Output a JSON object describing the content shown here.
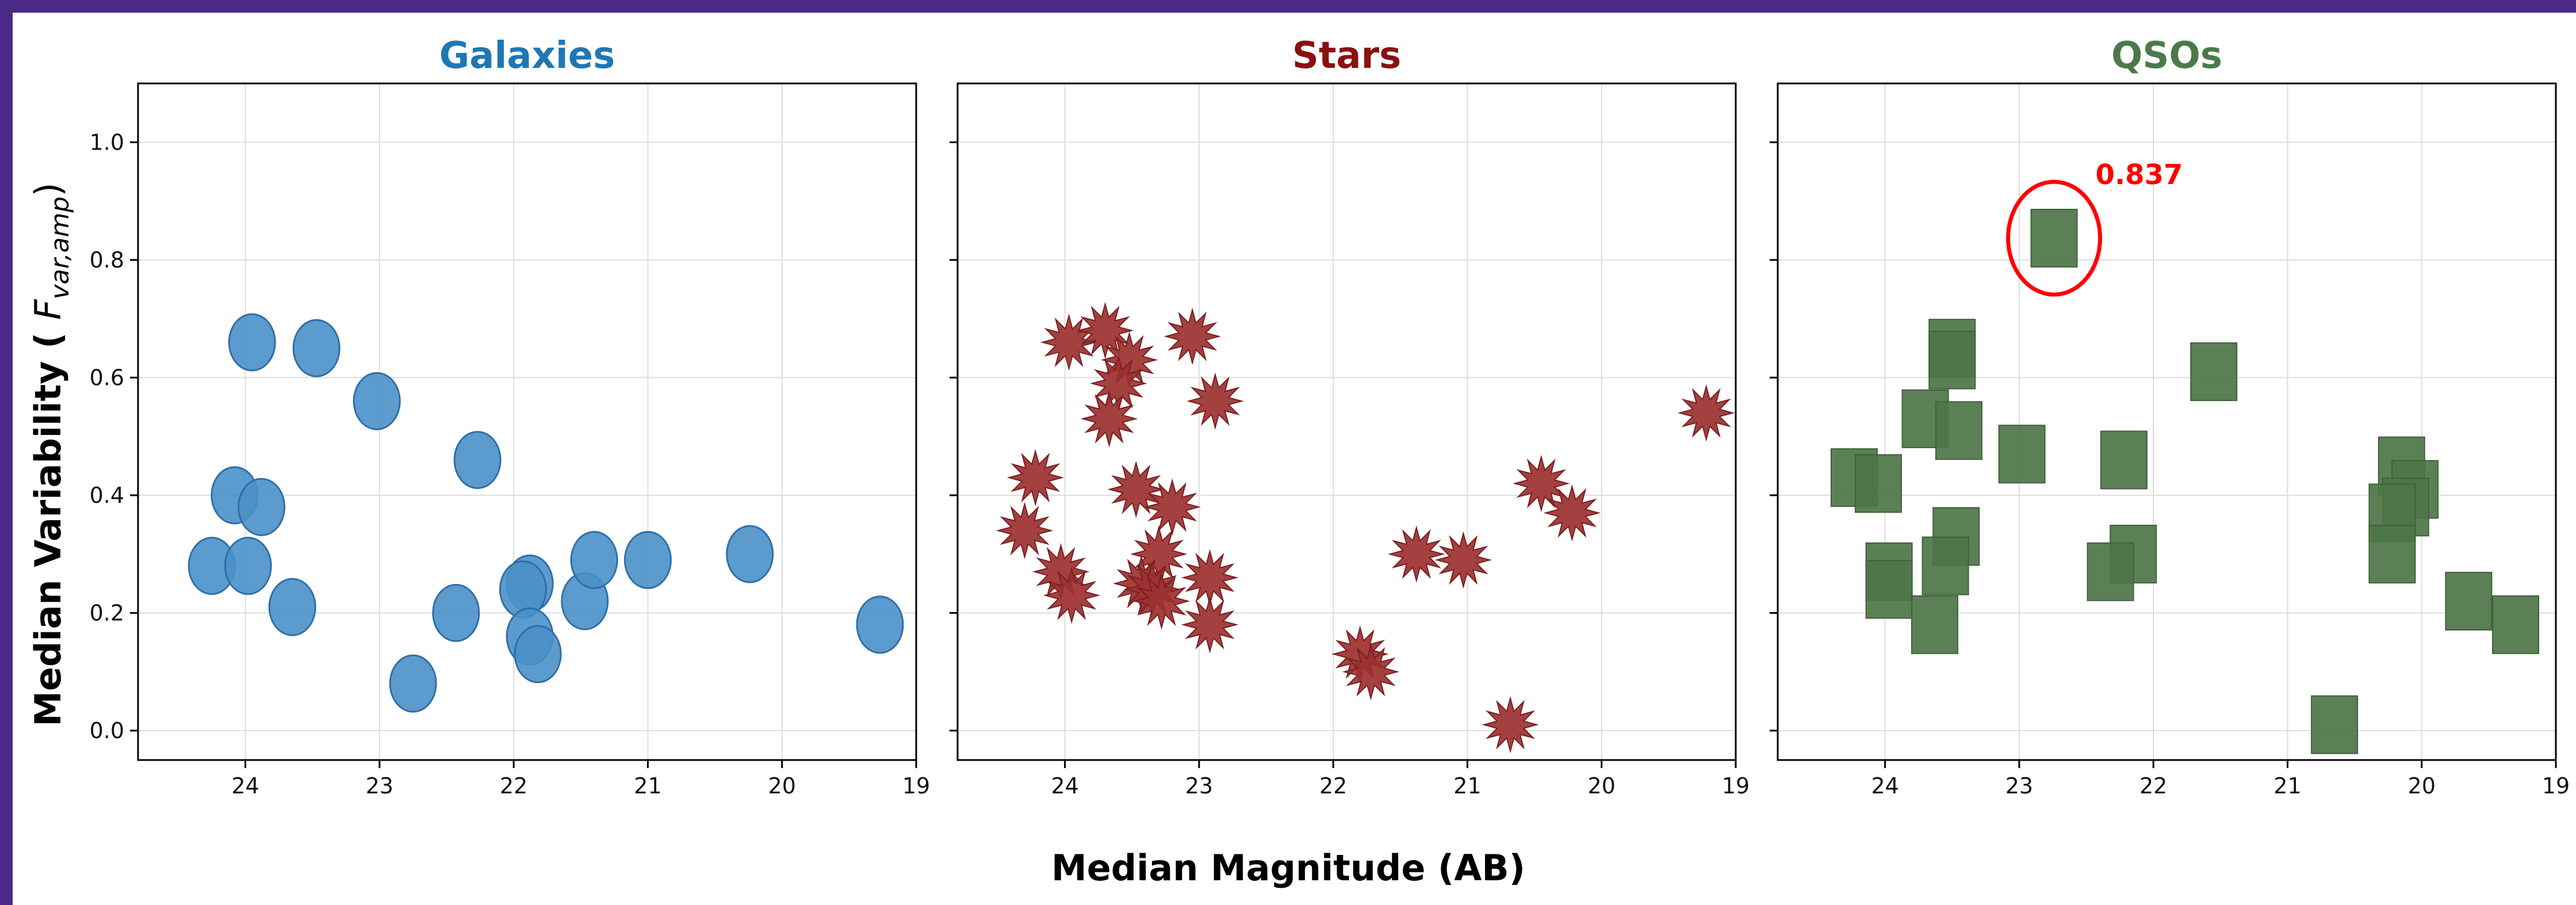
{
  "figure": {
    "frame_color": "#4a2a86"
  },
  "chart_data": [
    {
      "type": "scatter",
      "title": "Galaxies",
      "title_color": "#1f77b4",
      "marker": "ellipse",
      "marker_color": "#4a90c8",
      "xlabel": "Median Magnitude (AB)",
      "ylabel": "Median Variability (F_var,amp)",
      "xlim": [
        24.8,
        19.0
      ],
      "ylim": [
        -0.05,
        1.1
      ],
      "xticks": [
        "24",
        "23",
        "22",
        "21",
        "20",
        "19"
      ],
      "yticks": [
        "0.0",
        "0.2",
        "0.4",
        "0.6",
        "0.8",
        "1.0"
      ],
      "grid": true,
      "points": [
        {
          "x": 23.95,
          "y": 0.66
        },
        {
          "x": 23.47,
          "y": 0.65
        },
        {
          "x": 23.02,
          "y": 0.56
        },
        {
          "x": 22.27,
          "y": 0.46
        },
        {
          "x": 24.08,
          "y": 0.4
        },
        {
          "x": 23.88,
          "y": 0.38
        },
        {
          "x": 24.25,
          "y": 0.28
        },
        {
          "x": 23.98,
          "y": 0.28
        },
        {
          "x": 23.65,
          "y": 0.21
        },
        {
          "x": 22.43,
          "y": 0.2
        },
        {
          "x": 22.75,
          "y": 0.08
        },
        {
          "x": 21.88,
          "y": 0.25
        },
        {
          "x": 21.93,
          "y": 0.24
        },
        {
          "x": 21.88,
          "y": 0.16
        },
        {
          "x": 21.82,
          "y": 0.13
        },
        {
          "x": 21.47,
          "y": 0.22
        },
        {
          "x": 21.4,
          "y": 0.29
        },
        {
          "x": 21.0,
          "y": 0.29
        },
        {
          "x": 20.24,
          "y": 0.3
        },
        {
          "x": 19.27,
          "y": 0.18
        }
      ]
    },
    {
      "type": "scatter",
      "title": "Stars",
      "title_color": "#8b1010",
      "marker": "star",
      "marker_color": "#9c3030",
      "xlim": [
        24.8,
        19.0
      ],
      "ylim": [
        -0.05,
        1.1
      ],
      "xticks": [
        "24",
        "23",
        "22",
        "21",
        "20",
        "19"
      ],
      "grid": true,
      "points": [
        {
          "x": 23.97,
          "y": 0.66
        },
        {
          "x": 23.7,
          "y": 0.68
        },
        {
          "x": 23.52,
          "y": 0.63
        },
        {
          "x": 23.6,
          "y": 0.59
        },
        {
          "x": 23.05,
          "y": 0.67
        },
        {
          "x": 22.88,
          "y": 0.56
        },
        {
          "x": 23.67,
          "y": 0.53
        },
        {
          "x": 24.22,
          "y": 0.43
        },
        {
          "x": 24.3,
          "y": 0.34
        },
        {
          "x": 23.47,
          "y": 0.41
        },
        {
          "x": 23.2,
          "y": 0.38
        },
        {
          "x": 24.03,
          "y": 0.27
        },
        {
          "x": 23.95,
          "y": 0.23
        },
        {
          "x": 23.3,
          "y": 0.3
        },
        {
          "x": 23.43,
          "y": 0.25
        },
        {
          "x": 23.35,
          "y": 0.24
        },
        {
          "x": 23.28,
          "y": 0.22
        },
        {
          "x": 22.92,
          "y": 0.26
        },
        {
          "x": 22.92,
          "y": 0.18
        },
        {
          "x": 21.8,
          "y": 0.13
        },
        {
          "x": 21.72,
          "y": 0.1
        },
        {
          "x": 21.38,
          "y": 0.3
        },
        {
          "x": 21.03,
          "y": 0.29
        },
        {
          "x": 20.45,
          "y": 0.42
        },
        {
          "x": 20.22,
          "y": 0.37
        },
        {
          "x": 20.68,
          "y": 0.01
        },
        {
          "x": 19.22,
          "y": 0.54
        }
      ]
    },
    {
      "type": "scatter",
      "title": "QSOs",
      "title_color": "#4a7a4a",
      "marker": "square",
      "marker_color": "#4e7548",
      "xlim": [
        24.8,
        19.0
      ],
      "ylim": [
        -0.05,
        1.1
      ],
      "xticks": [
        "24",
        "23",
        "22",
        "21",
        "20",
        "19"
      ],
      "grid": true,
      "annotation": {
        "text": "0.837",
        "x": 22.74,
        "y": 0.837,
        "color": "#ff0000"
      },
      "points": [
        {
          "x": 22.74,
          "y": 0.837
        },
        {
          "x": 23.5,
          "y": 0.65
        },
        {
          "x": 23.5,
          "y": 0.63
        },
        {
          "x": 23.7,
          "y": 0.53
        },
        {
          "x": 23.45,
          "y": 0.51
        },
        {
          "x": 22.98,
          "y": 0.47
        },
        {
          "x": 24.23,
          "y": 0.43
        },
        {
          "x": 24.05,
          "y": 0.42
        },
        {
          "x": 22.22,
          "y": 0.46
        },
        {
          "x": 21.55,
          "y": 0.61
        },
        {
          "x": 23.97,
          "y": 0.27
        },
        {
          "x": 23.97,
          "y": 0.24
        },
        {
          "x": 23.47,
          "y": 0.33
        },
        {
          "x": 23.55,
          "y": 0.28
        },
        {
          "x": 23.63,
          "y": 0.18
        },
        {
          "x": 22.15,
          "y": 0.3
        },
        {
          "x": 22.32,
          "y": 0.27
        },
        {
          "x": 20.15,
          "y": 0.45
        },
        {
          "x": 20.05,
          "y": 0.41
        },
        {
          "x": 20.12,
          "y": 0.38
        },
        {
          "x": 20.22,
          "y": 0.37
        },
        {
          "x": 20.22,
          "y": 0.3
        },
        {
          "x": 19.65,
          "y": 0.22
        },
        {
          "x": 19.3,
          "y": 0.18
        },
        {
          "x": 20.65,
          "y": 0.01
        }
      ]
    }
  ]
}
